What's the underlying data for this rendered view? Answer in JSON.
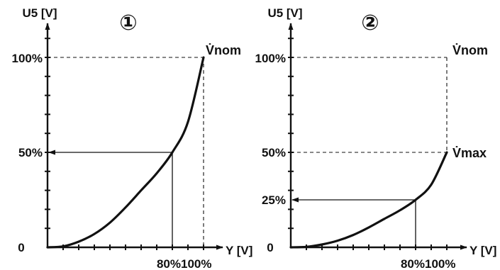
{
  "colors": {
    "ink": "#111111",
    "background": "#ffffff"
  },
  "chart_data": [
    {
      "type": "line",
      "panel_number": "①",
      "ylabel": "U5 [V]",
      "xlabel": "Y [V]",
      "y_tick_labels": [
        "100%",
        "50%",
        "0"
      ],
      "x_tick_labels": [
        "80%",
        "100%"
      ],
      "xlim": [
        0,
        100
      ],
      "ylim": [
        0,
        100
      ],
      "series": [
        {
          "x": [
            0,
            10,
            20,
            30,
            40,
            50,
            60,
            70,
            80,
            90,
            100
          ],
          "y": [
            0,
            0.5,
            3,
            7,
            13,
            21,
            30,
            39,
            50,
            66,
            100
          ]
        }
      ],
      "annotations": [
        {
          "text": "V̇nom",
          "x": 100,
          "y": 100
        }
      ],
      "reference_point": {
        "x": 80,
        "y": 50
      },
      "reference_arrow_to": "y-axis"
    },
    {
      "type": "line",
      "panel_number": "②",
      "ylabel": "U5 [V]",
      "xlabel": "Y [V]",
      "y_tick_labels": [
        "100%",
        "50%",
        "25%",
        "0"
      ],
      "x_tick_labels": [
        "80%",
        "100%"
      ],
      "xlim": [
        0,
        100
      ],
      "ylim": [
        0,
        100
      ],
      "series": [
        {
          "x": [
            0,
            10,
            20,
            30,
            40,
            50,
            60,
            70,
            80,
            90,
            100
          ],
          "y": [
            0,
            0.25,
            1.5,
            3.5,
            6.5,
            10.5,
            15,
            19.5,
            25,
            33,
            50
          ]
        }
      ],
      "annotations": [
        {
          "text": "V̇nom",
          "x": 100,
          "y": 100
        },
        {
          "text": "V̇max",
          "x": 100,
          "y": 50
        }
      ],
      "reference_point": {
        "x": 80,
        "y": 25
      },
      "reference_arrow_to": "y-axis"
    }
  ]
}
